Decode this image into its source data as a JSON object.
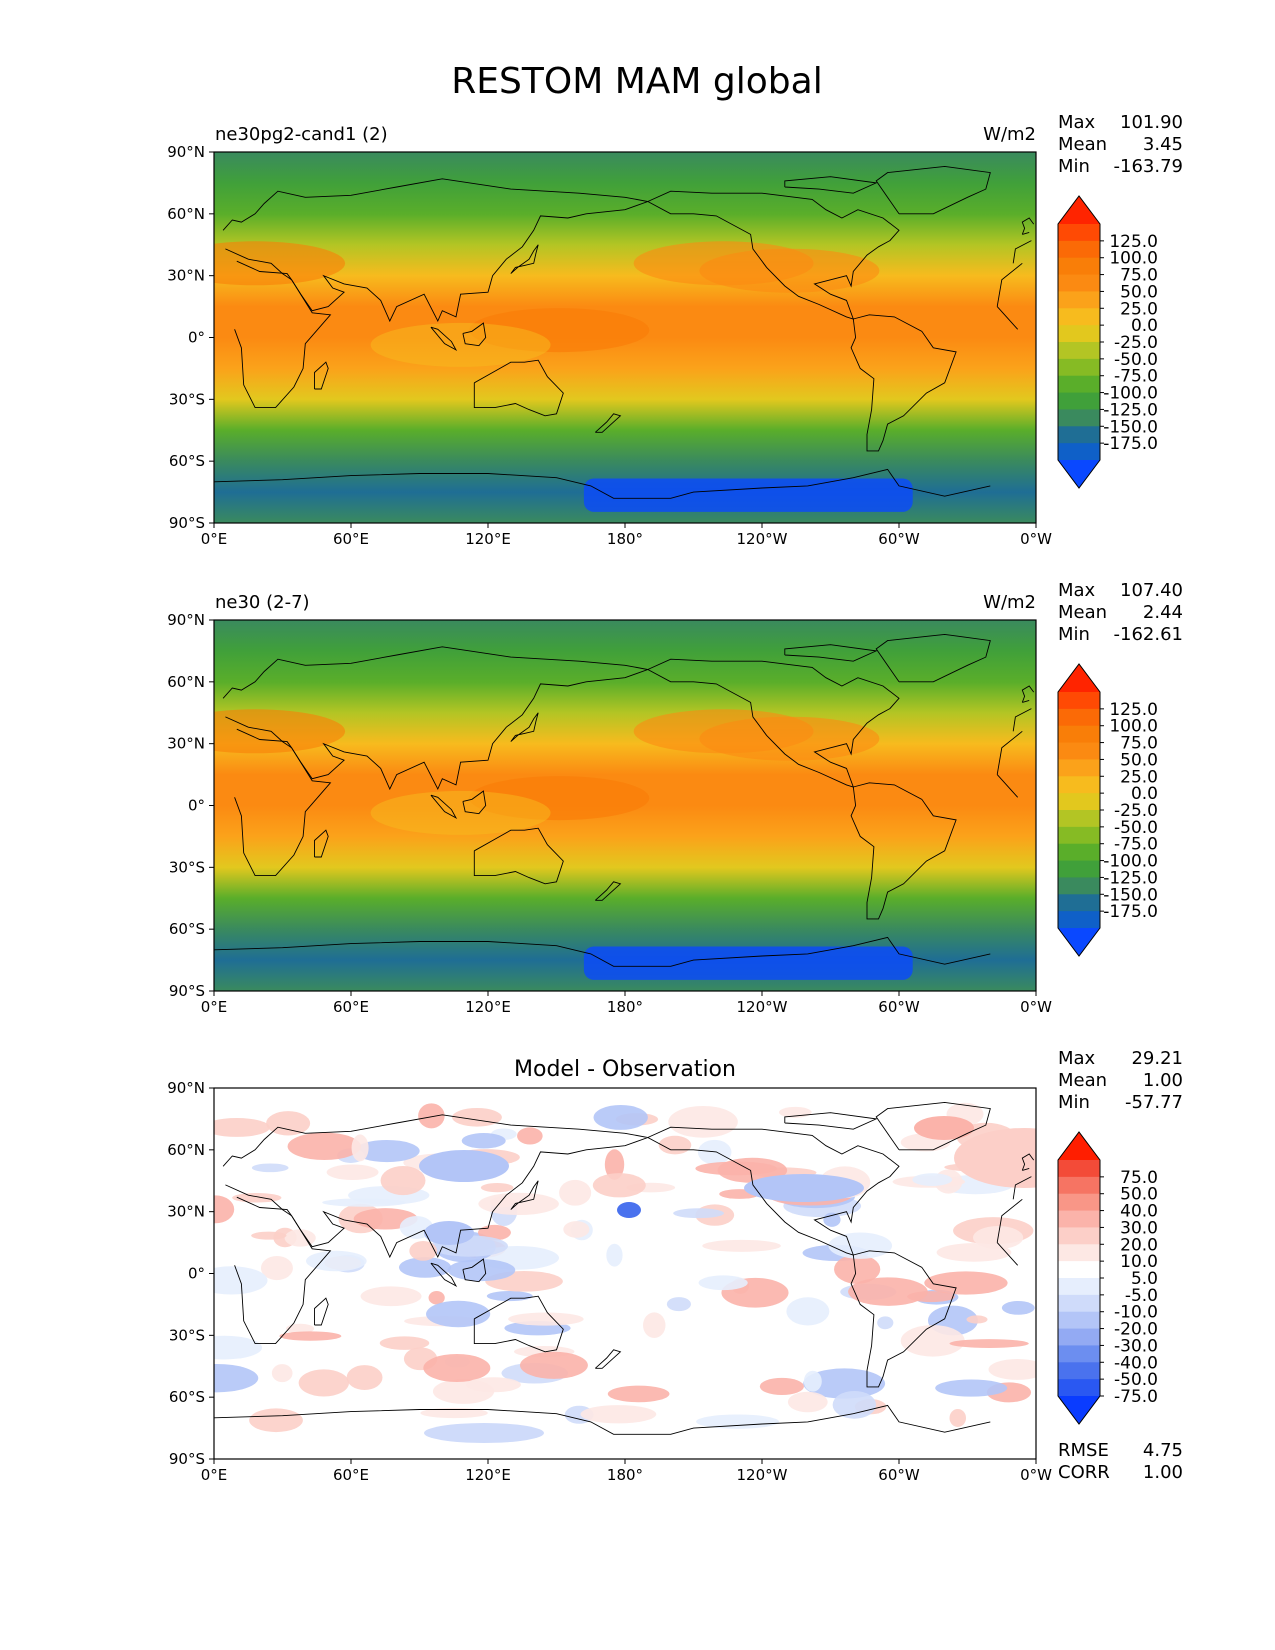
{
  "figure_title": "RESTOM MAM global",
  "colors": {
    "test_levels": [
      "#0a48ff",
      "#0f60c8",
      "#1f6e95",
      "#3a8a5e",
      "#40a03a",
      "#5aae2a",
      "#86bb24",
      "#b3c524",
      "#e2c81e",
      "#f7bb1e",
      "#fba21a",
      "#fb8a12",
      "#f97e08",
      "#fb6a06",
      "#ff4a04",
      "#ff2400"
    ],
    "diff_levels": [
      "#0a3cff",
      "#2a58f2",
      "#4a72ee",
      "#6c8ef0",
      "#93aaf3",
      "#b3c5f7",
      "#cfdbfa",
      "#e6eefd",
      "#ffffff",
      "#fde8e4",
      "#fccfc8",
      "#fbb3aa",
      "#f99687",
      "#f67463",
      "#f34b38",
      "#ff1e00"
    ],
    "axes_frame": "#000000",
    "coast": "#000000"
  },
  "chart_data": [
    {
      "type": "heatmap",
      "panel": "test",
      "title_left": "ne30pg2-cand1 (2)",
      "title_center": "",
      "units": "W/m2",
      "stats": {
        "max_label": "Max",
        "max": "101.90",
        "mean_label": "Mean",
        "mean": "3.45",
        "min_label": "Min",
        "min": "-163.79"
      },
      "colorbar_levels": [
        "125.0",
        "100.0",
        "75.0",
        "50.0",
        "25.0",
        "0.0",
        "-25.0",
        "-50.0",
        "-75.0",
        "-100.0",
        "-125.0",
        "-150.0",
        "-175.0"
      ],
      "xticks": [
        "0°E",
        "60°E",
        "120°E",
        "180°",
        "120°W",
        "60°W",
        "0°W"
      ],
      "yticks": [
        "90°N",
        "60°N",
        "30°N",
        "0°",
        "30°S",
        "60°S",
        "90°S"
      ],
      "xlim": [
        0,
        360
      ],
      "ylim": [
        -90,
        90
      ],
      "zonal_mean_profile": [
        {
          "lat": 90,
          "value": -110
        },
        {
          "lat": 75,
          "value": -90
        },
        {
          "lat": 60,
          "value": -60
        },
        {
          "lat": 45,
          "value": -10
        },
        {
          "lat": 30,
          "value": 40
        },
        {
          "lat": 15,
          "value": 75
        },
        {
          "lat": 0,
          "value": 80
        },
        {
          "lat": -15,
          "value": 60
        },
        {
          "lat": -30,
          "value": 10
        },
        {
          "lat": -45,
          "value": -55
        },
        {
          "lat": -60,
          "value": -115
        },
        {
          "lat": -75,
          "value": -150
        },
        {
          "lat": -90,
          "value": -120
        }
      ]
    },
    {
      "type": "heatmap",
      "panel": "reference",
      "title_left": "ne30 (2-7)",
      "title_center": "",
      "units": "W/m2",
      "stats": {
        "max_label": "Max",
        "max": "107.40",
        "mean_label": "Mean",
        "mean": "2.44",
        "min_label": "Min",
        "min": "-162.61"
      },
      "colorbar_levels": [
        "125.0",
        "100.0",
        "75.0",
        "50.0",
        "25.0",
        "0.0",
        "-25.0",
        "-50.0",
        "-75.0",
        "-100.0",
        "-125.0",
        "-150.0",
        "-175.0"
      ],
      "xticks": [
        "0°E",
        "60°E",
        "120°E",
        "180°",
        "120°W",
        "60°W",
        "0°W"
      ],
      "yticks": [
        "90°N",
        "60°N",
        "30°N",
        "0°",
        "30°S",
        "60°S",
        "90°S"
      ],
      "xlim": [
        0,
        360
      ],
      "ylim": [
        -90,
        90
      ],
      "zonal_mean_profile": [
        {
          "lat": 90,
          "value": -110
        },
        {
          "lat": 75,
          "value": -88
        },
        {
          "lat": 60,
          "value": -58
        },
        {
          "lat": 45,
          "value": -8
        },
        {
          "lat": 30,
          "value": 42
        },
        {
          "lat": 15,
          "value": 78
        },
        {
          "lat": 0,
          "value": 82
        },
        {
          "lat": -15,
          "value": 62
        },
        {
          "lat": -30,
          "value": 12
        },
        {
          "lat": -45,
          "value": -52
        },
        {
          "lat": -60,
          "value": -112
        },
        {
          "lat": -75,
          "value": -150
        },
        {
          "lat": -90,
          "value": -120
        }
      ]
    },
    {
      "type": "heatmap",
      "panel": "difference",
      "title_left": "",
      "title_center": "Model - Observation",
      "units": "",
      "stats": {
        "max_label": "Max",
        "max": "29.21",
        "mean_label": "Mean",
        "mean": "1.00",
        "min_label": "Min",
        "min": "-57.77"
      },
      "colorbar_levels": [
        "75.0",
        "50.0",
        "40.0",
        "30.0",
        "20.0",
        "10.0",
        "5.0",
        "-5.0",
        "-10.0",
        "-20.0",
        "-30.0",
        "-40.0",
        "-50.0",
        "-75.0"
      ],
      "xticks": [
        "0°E",
        "60°E",
        "120°E",
        "180°",
        "120°W",
        "60°W",
        "0°W"
      ],
      "yticks": [
        "90°N",
        "60°N",
        "30°N",
        "0°",
        "30°S",
        "60°S",
        "90°S"
      ],
      "xlim": [
        0,
        360
      ],
      "ylim": [
        -90,
        90
      ],
      "metrics": {
        "rmse_label": "RMSE",
        "rmse": "4.75",
        "corr_label": "CORR",
        "corr": "1.00"
      }
    }
  ]
}
